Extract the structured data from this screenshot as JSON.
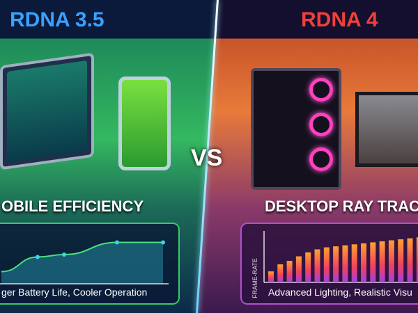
{
  "left": {
    "title": "RDNA 3.5",
    "subtitle": "OBILE EFFICIENCY",
    "caption": "ger Battery Life, Cooler Operation",
    "accent": "#3aa0ff"
  },
  "right": {
    "title": "RDNA 4",
    "subtitle": "DESKTOP RAY TRAC",
    "caption": "Advanced Lighting, Realistic Visu",
    "y_label": "FRAME-RATE",
    "accent": "#f0403a"
  },
  "vs": "VS",
  "chart_data": [
    {
      "type": "area",
      "points": [
        0.25,
        0.55,
        0.6,
        0.85,
        0.85
      ],
      "title": "",
      "xlabel": "",
      "ylabel": ""
    },
    {
      "type": "bar",
      "ylabel": "FRAME-RATE",
      "values": [
        0.22,
        0.36,
        0.43,
        0.52,
        0.6,
        0.66,
        0.7,
        0.72,
        0.74,
        0.76,
        0.78,
        0.8,
        0.82,
        0.84,
        0.86,
        0.88,
        0.9
      ],
      "xlabel": "",
      "title": ""
    }
  ]
}
